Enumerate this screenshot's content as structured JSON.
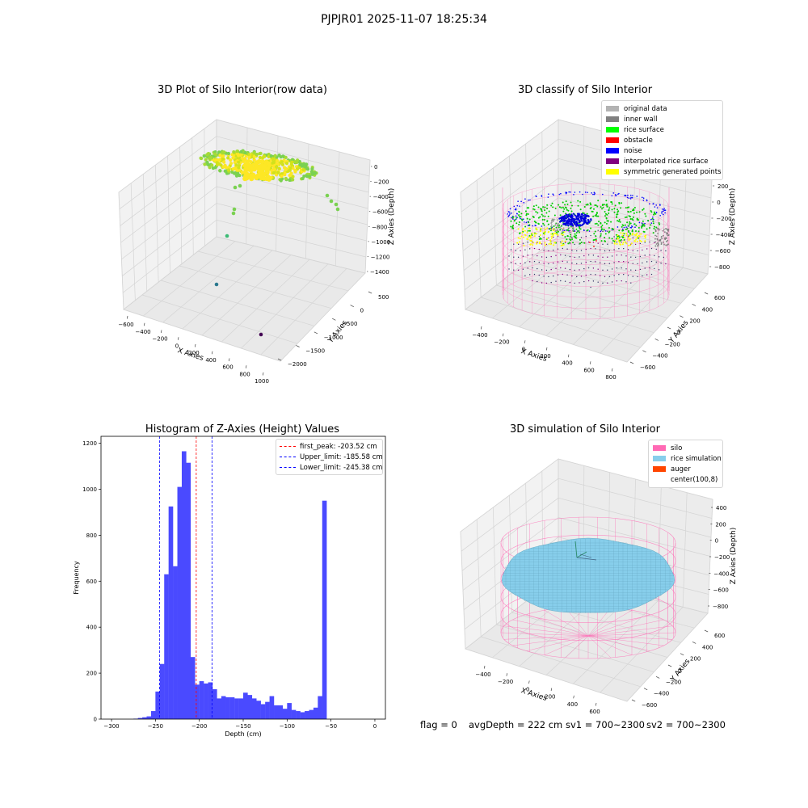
{
  "suptitle": "PJPJR01 2025-11-07 18:25:34",
  "footer": {
    "flag": "flag = 0",
    "avgDepth": "avgDepth = 222 cm",
    "sv1": "sv1 = 700~2300",
    "sv2": "sv2 = 700~2300"
  },
  "colors": {
    "original_data": "#b3b3b3",
    "inner_wall": "#808080",
    "rice_surface": "#00ff00",
    "obstacle": "#ff0000",
    "noise": "#0000ff",
    "interpolated": "#800080",
    "symmetric": "#ffff00",
    "silo": "#ff69b4",
    "rice_sim": "#87ceeb",
    "auger": "#ff4500",
    "hist_bar": "#4a4aff"
  },
  "chart_data": [
    {
      "type": "scatter",
      "title": "3D Plot of Silo Interior(row data)",
      "xlabel": "X Axies",
      "ylabel": "Y Axies",
      "zlabel": "Z Axies (Depth)",
      "x_ticks": [
        "−600",
        "−400",
        "−200",
        "0",
        "200",
        "400",
        "600",
        "800",
        "1000"
      ],
      "y_ticks": [
        "−2000",
        "−1500",
        "−1000",
        "−500",
        "0",
        "500"
      ],
      "z_ticks": [
        "0",
        "−200",
        "−400",
        "−600",
        "−800",
        "−1000",
        "−1200",
        "−1400"
      ],
      "colormap": "viridis",
      "outliers": [
        {
          "x": -150,
          "y": 300,
          "z": -1400
        },
        {
          "x": 900,
          "y": -2000,
          "z": -1250
        },
        {
          "x": -420,
          "y": 500,
          "z": -900
        },
        {
          "x": 400,
          "y": 200,
          "z": -650
        }
      ]
    },
    {
      "type": "scatter",
      "title": "3D classify of Silo Interior",
      "xlabel": "X Axies",
      "ylabel": "Y Axies",
      "zlabel": "Z Axies (Depth)",
      "x_ticks": [
        "−400",
        "−200",
        "0",
        "200",
        "400",
        "600",
        "800"
      ],
      "y_ticks": [
        "−600",
        "−400",
        "−200",
        "0",
        "200",
        "400",
        "600"
      ],
      "z_ticks": [
        "200",
        "0",
        "−200",
        "−400",
        "−600",
        "−800"
      ],
      "legend": [
        "original data",
        "inner wall",
        "rice surface",
        "obstacle",
        "noise",
        "interpolated rice surface",
        "symmetric generated points"
      ],
      "legend_position": "upper right"
    },
    {
      "type": "bar",
      "title": "Histogram of Z-Axies (Height) Values",
      "xlabel": "Depth (cm)",
      "ylabel": "Frequency",
      "xlim": [
        -312,
        12
      ],
      "ylim": [
        0,
        1230
      ],
      "x_ticks": [
        -300,
        -250,
        -200,
        -150,
        -100,
        -50,
        0
      ],
      "y_ticks": [
        0,
        200,
        400,
        600,
        800,
        1000,
        1200
      ],
      "bin_start": -275,
      "bin_width": 5,
      "values": [
        2,
        5,
        8,
        12,
        35,
        120,
        240,
        630,
        925,
        665,
        1010,
        1165,
        1115,
        270,
        150,
        165,
        155,
        160,
        130,
        90,
        100,
        95,
        95,
        90,
        90,
        115,
        105,
        90,
        80,
        65,
        75,
        100,
        60,
        60,
        45,
        70,
        40,
        35,
        30,
        35,
        40,
        50,
        100,
        950
      ],
      "vlines": [
        {
          "x": -203.52,
          "color": "#ff0000",
          "label": "first_peak: -203.52 cm"
        },
        {
          "x": -185.58,
          "color": "#0000ff",
          "label": "Upper_limit: -185.58 cm"
        },
        {
          "x": -245.38,
          "color": "#0000ff",
          "label": "Lower_limit: -245.38 cm"
        }
      ],
      "legend_position": "upper right"
    },
    {
      "type": "scatter",
      "title": "3D simulation of Silo Interior",
      "xlabel": "X Axies",
      "ylabel": "Y Axies",
      "zlabel": "Z Axies (Depth)",
      "x_ticks": [
        "−400",
        "−200",
        "0",
        "200",
        "400",
        "600"
      ],
      "y_ticks": [
        "−600",
        "−400",
        "−200",
        "0",
        "200",
        "400",
        "600"
      ],
      "z_ticks": [
        "400",
        "200",
        "0",
        "−200",
        "−400",
        "−600",
        "−800"
      ],
      "legend": [
        "silo",
        "rice simulation",
        "auger",
        "center(100,8)"
      ],
      "legend_position": "upper right"
    }
  ]
}
